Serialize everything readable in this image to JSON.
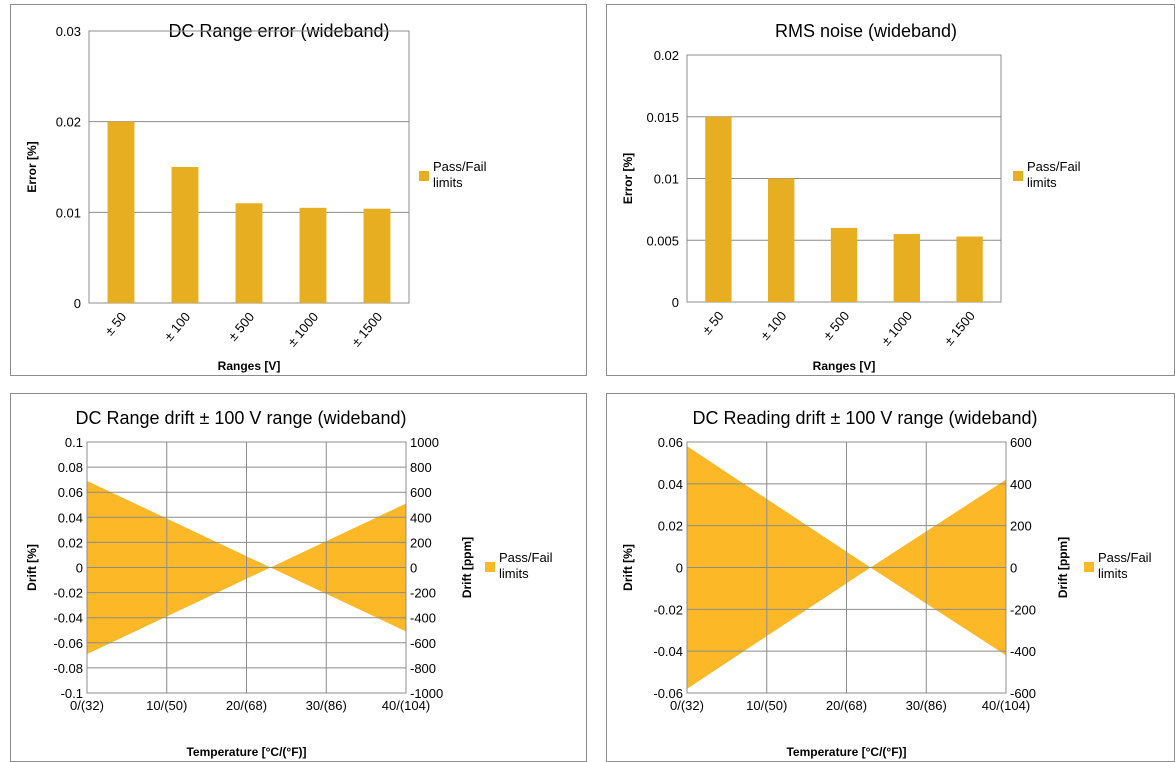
{
  "chart_data": [
    {
      "type": "bar",
      "title": "DC Range error (wideband)",
      "xlabel": "Ranges [V]",
      "ylabel": "Error [%]",
      "categories": [
        "± 50",
        "± 100",
        "± 500",
        "± 1000",
        "± 1500"
      ],
      "yticks": [
        "0",
        "0.01",
        "0.02",
        "0.03"
      ],
      "ylim": [
        0,
        0.03
      ],
      "series": [
        {
          "name": "Pass/Fail limits",
          "values": [
            0.02,
            0.015,
            0.011,
            0.0105,
            0.0104
          ]
        }
      ],
      "legend_lines": [
        "Pass/Fail",
        "limits"
      ],
      "color": "#e8ae21",
      "grid": true,
      "legend": "right"
    },
    {
      "type": "bar",
      "title": "RMS noise (wideband)",
      "xlabel": "Ranges [V]",
      "ylabel": "Error [%]",
      "categories": [
        "± 50",
        "± 100",
        "± 500",
        "± 1000",
        "± 1500"
      ],
      "yticks": [
        "0",
        "0.005",
        "0.01",
        "0.015",
        "0.02"
      ],
      "ylim": [
        0,
        0.02
      ],
      "series": [
        {
          "name": "Pass/Fail limits",
          "values": [
            0.015,
            0.01,
            0.006,
            0.0055,
            0.0053
          ]
        }
      ],
      "legend_lines": [
        "Pass/Fail",
        "limits"
      ],
      "color": "#e8ae21",
      "grid": true,
      "legend": "right"
    },
    {
      "type": "area",
      "title": "DC Range drift ± 100 V range (wideband)",
      "xlabel": "Temperature [°C/(°F)]",
      "ylabel": "Drift [%]",
      "y2label": "Drift [ppm]",
      "x": [
        0,
        23,
        40
      ],
      "xticks": [
        "0/(32)",
        "10/(50)",
        "20/(68)",
        "30/(86)",
        "40/(104)"
      ],
      "yticks": [
        "-0.1",
        "-0.08",
        "-0.06",
        "-0.04",
        "-0.02",
        "0",
        "0.02",
        "0.04",
        "0.06",
        "0.08",
        "0.1"
      ],
      "y2ticks": [
        "-1000",
        "-800",
        "-600",
        "-400",
        "-200",
        "0",
        "200",
        "400",
        "600",
        "800",
        "1000"
      ],
      "ylim": [
        -0.1,
        0.1
      ],
      "xlim": [
        0,
        40
      ],
      "series": [
        {
          "name": "Pass/Fail limits",
          "upper": [
            0.069,
            0,
            0.051
          ],
          "lower": [
            -0.069,
            0,
            -0.051
          ]
        }
      ],
      "legend_lines": [
        "Pass/Fail",
        "limits"
      ],
      "color": "#fdb827",
      "grid": true,
      "legend": "right"
    },
    {
      "type": "area",
      "title": "DC Reading drift ± 100 V range (wideband)",
      "xlabel": "Temperature [°C/(°F)]",
      "ylabel": "Drift [%]",
      "y2label": "Drift [ppm]",
      "x": [
        0,
        23,
        40
      ],
      "xticks": [
        "0/(32)",
        "10/(50)",
        "20/(68)",
        "30/(86)",
        "40/(104)"
      ],
      "yticks": [
        "-0.06",
        "-0.04",
        "-0.02",
        "0",
        "0.02",
        "0.04",
        "0.06"
      ],
      "y2ticks": [
        "-600",
        "-400",
        "-200",
        "0",
        "200",
        "400",
        "600"
      ],
      "ylim": [
        -0.06,
        0.06
      ],
      "xlim": [
        0,
        40
      ],
      "series": [
        {
          "name": "Pass/Fail limits",
          "upper": [
            0.058,
            0,
            0.042
          ],
          "lower": [
            -0.058,
            0,
            -0.042
          ]
        }
      ],
      "legend_lines": [
        "Pass/Fail",
        "limits"
      ],
      "color": "#fdb827",
      "grid": true,
      "legend": "right"
    }
  ]
}
